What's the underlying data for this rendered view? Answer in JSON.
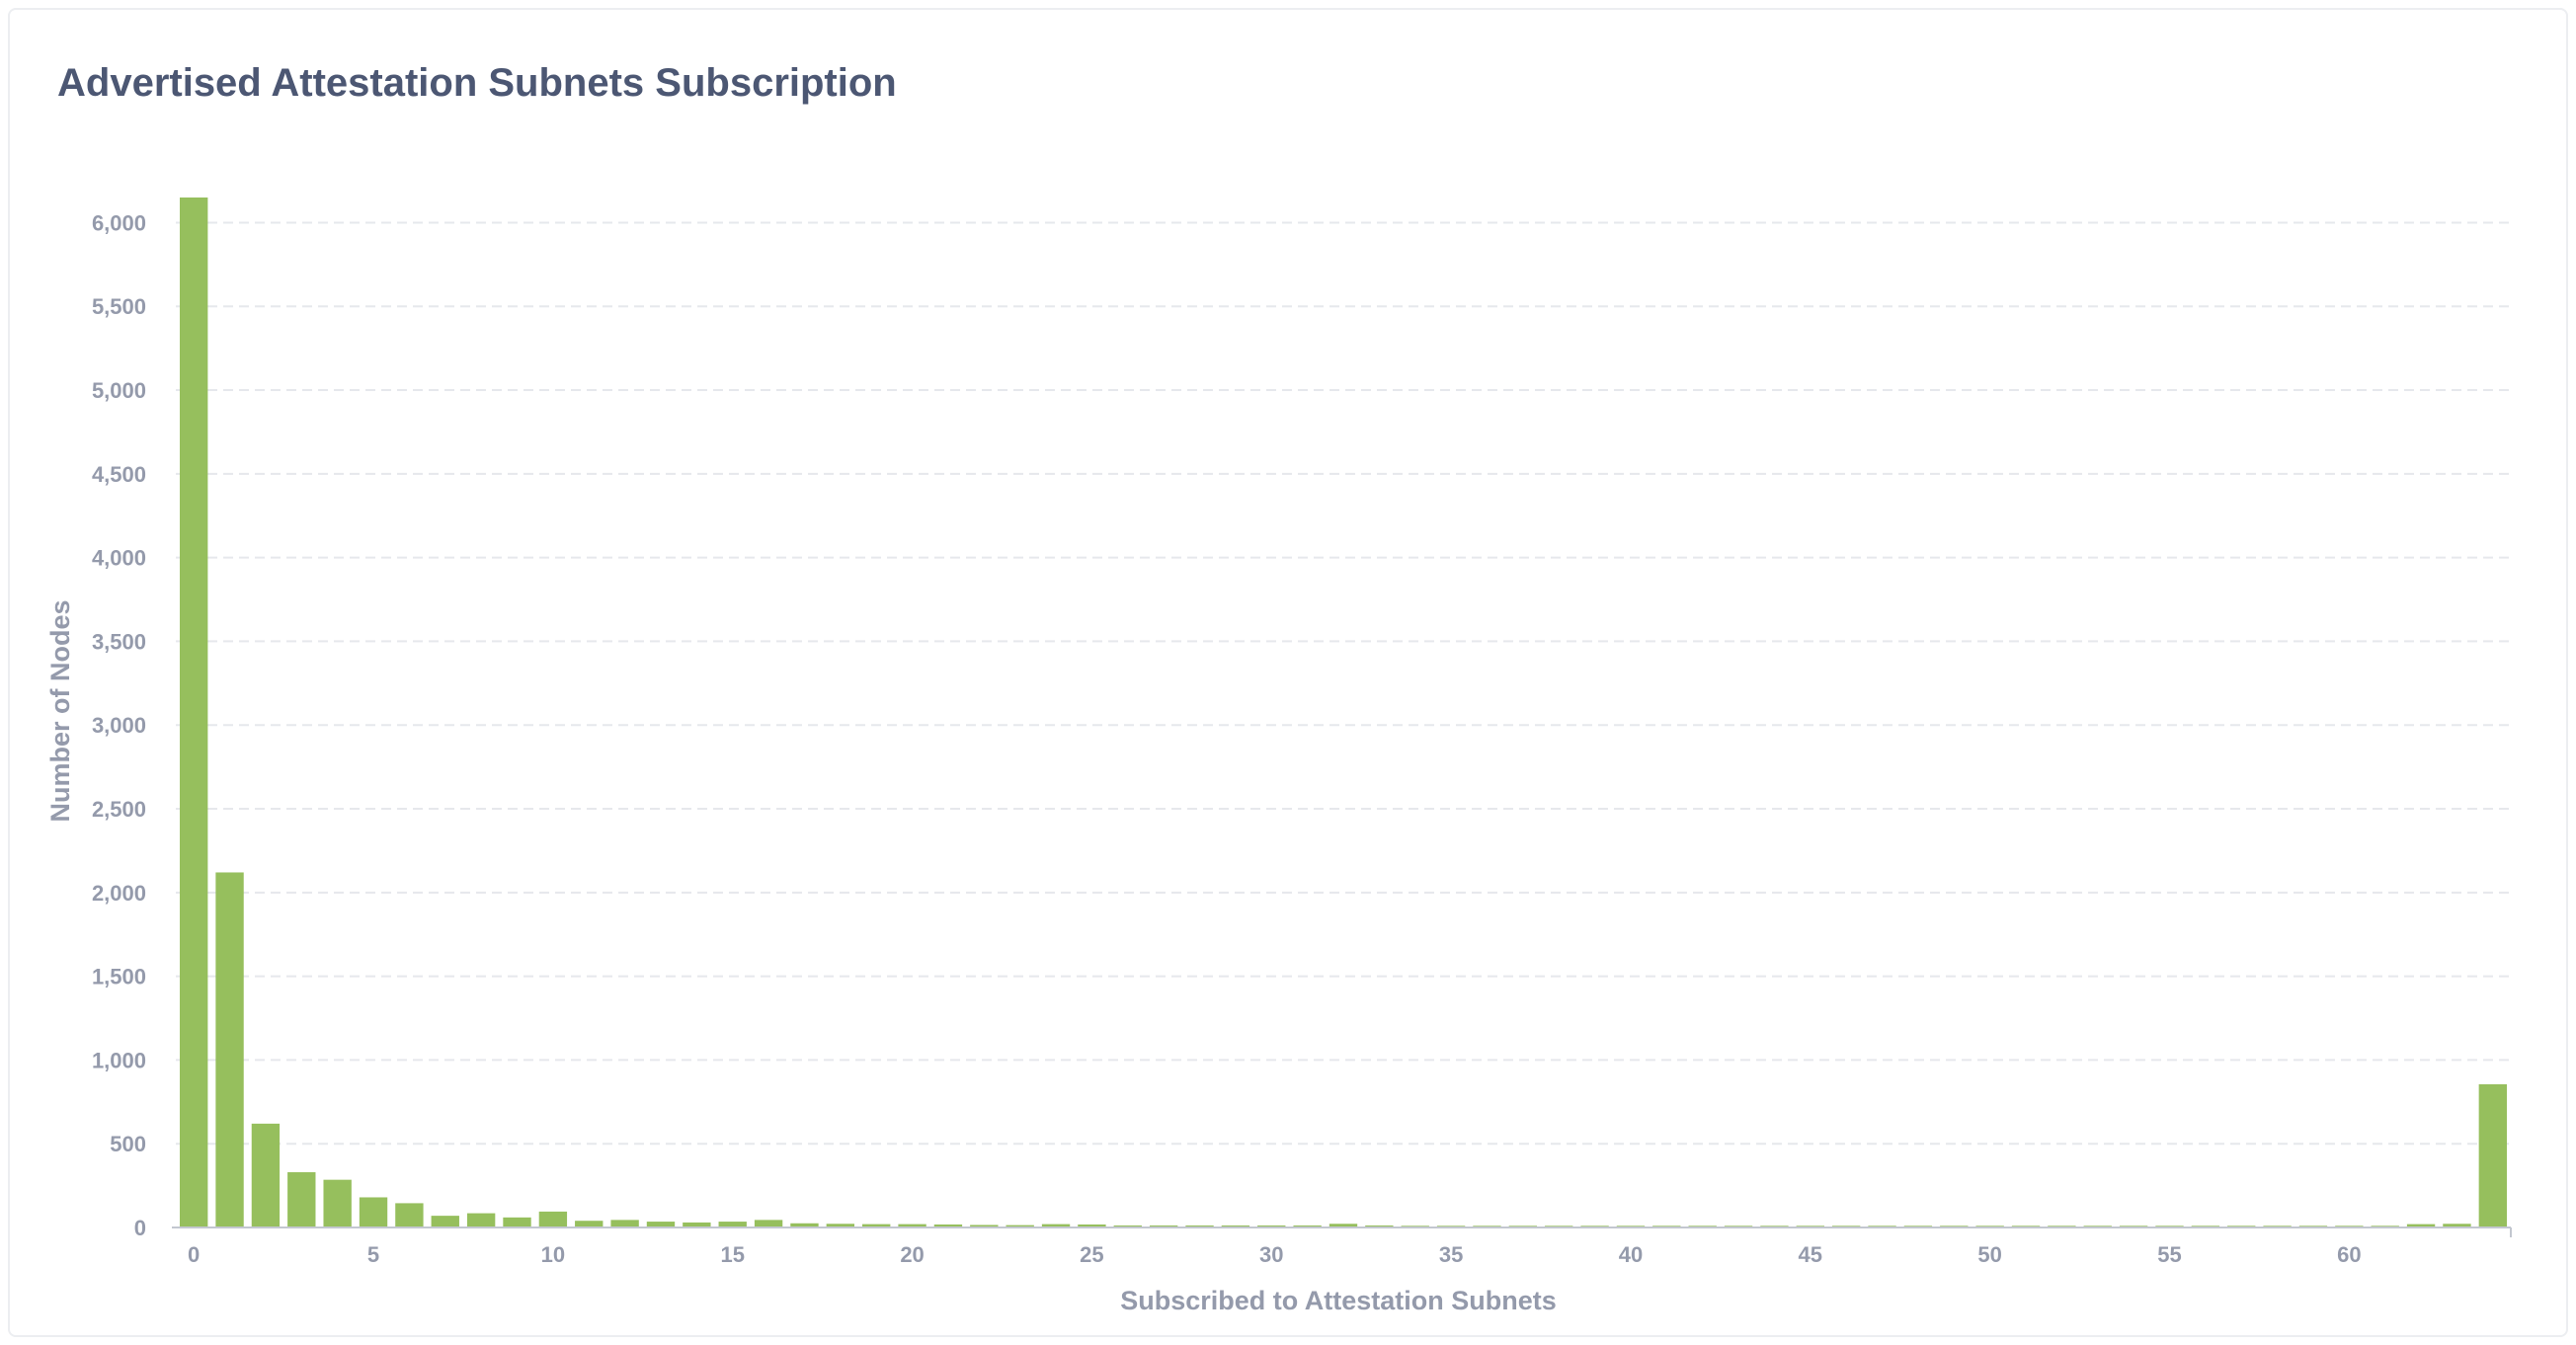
{
  "card": {
    "title": "Advertised Attestation Subnets Subscription"
  },
  "colors": {
    "bar": "#96bf5d",
    "grid": "#e6e8ec",
    "axis": "#c3c7d0",
    "tick_text": "#949aab",
    "title_text": "#4c5773"
  },
  "chart_data": {
    "type": "bar",
    "title": "Advertised Attestation Subnets Subscription",
    "xlabel": "Subscribed to Attestation Subnets",
    "ylabel": "Number of Nodes",
    "x": [
      0,
      1,
      2,
      3,
      4,
      5,
      6,
      7,
      8,
      9,
      10,
      11,
      12,
      13,
      14,
      15,
      16,
      17,
      18,
      19,
      20,
      21,
      22,
      23,
      24,
      25,
      26,
      27,
      28,
      29,
      30,
      31,
      32,
      33,
      34,
      35,
      36,
      37,
      38,
      39,
      40,
      41,
      42,
      43,
      44,
      45,
      46,
      47,
      48,
      49,
      50,
      51,
      52,
      53,
      54,
      55,
      56,
      57,
      58,
      59,
      60,
      61,
      62,
      63,
      64
    ],
    "values": [
      6150,
      2120,
      620,
      330,
      285,
      180,
      145,
      70,
      85,
      60,
      95,
      40,
      45,
      35,
      30,
      35,
      45,
      25,
      22,
      20,
      20,
      18,
      15,
      14,
      20,
      18,
      12,
      12,
      12,
      12,
      12,
      12,
      22,
      12,
      10,
      10,
      10,
      10,
      10,
      10,
      10,
      10,
      10,
      10,
      10,
      10,
      10,
      10,
      10,
      10,
      10,
      10,
      10,
      10,
      10,
      10,
      10,
      10,
      10,
      10,
      10,
      10,
      20,
      22,
      855
    ],
    "x_ticks": [
      0,
      5,
      10,
      15,
      20,
      25,
      30,
      35,
      40,
      45,
      50,
      55,
      60
    ],
    "x_tick_labels": [
      "0",
      "5",
      "10",
      "15",
      "20",
      "25",
      "30",
      "35",
      "40",
      "45",
      "50",
      "55",
      "60"
    ],
    "y_ticks": [
      0,
      500,
      1000,
      1500,
      2000,
      2500,
      3000,
      3500,
      4000,
      4500,
      5000,
      5500,
      6000
    ],
    "y_tick_labels": [
      "0",
      "500",
      "1,000",
      "1,500",
      "2,000",
      "2,500",
      "3,000",
      "3,500",
      "4,000",
      "4,500",
      "5,000",
      "5,500",
      "6,000"
    ],
    "xlim": [
      -0.5,
      64.5
    ],
    "ylim": [
      0,
      6150
    ],
    "grid": true,
    "legend": "none"
  }
}
